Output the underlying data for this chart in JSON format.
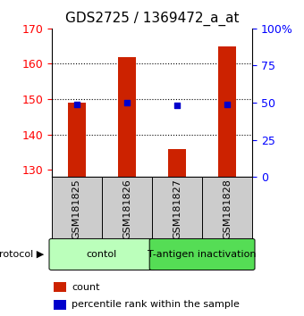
{
  "title": "GDS2725 / 1369472_a_at",
  "samples": [
    "GSM181825",
    "GSM181826",
    "GSM181827",
    "GSM181828"
  ],
  "counts": [
    149.0,
    162.0,
    136.0,
    165.0
  ],
  "percentile_ranks": [
    49.0,
    50.0,
    48.0,
    49.0
  ],
  "ylim_left": [
    128,
    170
  ],
  "ylim_right": [
    0,
    100
  ],
  "yticks_left": [
    130,
    140,
    150,
    160,
    170
  ],
  "yticks_right": [
    0,
    25,
    50,
    75,
    100
  ],
  "ytick_labels_right": [
    "0",
    "25",
    "50",
    "75",
    "100%"
  ],
  "bar_color": "#cc2200",
  "dot_color": "#0000cc",
  "grid_lines": [
    140,
    150,
    160
  ],
  "protocol_groups": [
    {
      "label": "contol",
      "span": [
        0,
        2
      ],
      "color": "#bbffbb"
    },
    {
      "label": "T-antigen inactivation",
      "span": [
        2,
        4
      ],
      "color": "#55dd55"
    }
  ],
  "protocol_label": "protocol",
  "legend_count_label": "count",
  "legend_percentile_label": "percentile rank within the sample",
  "bar_width": 0.35,
  "title_fontsize": 11,
  "sample_fontsize": 8,
  "tick_fontsize": 9,
  "proto_fontsize": 8,
  "legend_fontsize": 8,
  "sample_box_color": "#cccccc",
  "background_color": "#ffffff"
}
